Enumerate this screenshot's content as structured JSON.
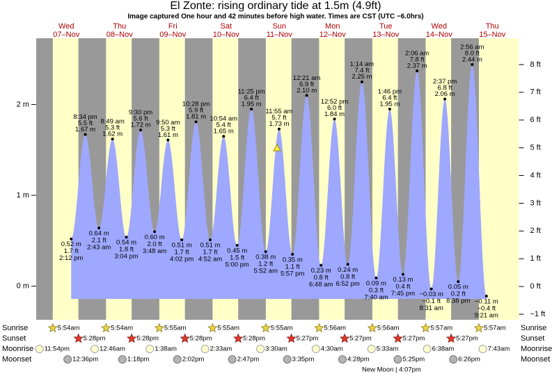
{
  "chart_data": {
    "type": "area",
    "title": "El Zonte: rising  ordinary tide at 1.5m (4.9ft)",
    "subtitle": "Image captured One hour and 42 minutes before high water. Times are CST (UTC −6.0hrs)",
    "days": [
      {
        "weekday": "Wed",
        "date": "07–Nov"
      },
      {
        "weekday": "Thu",
        "date": "08–Nov"
      },
      {
        "weekday": "Fri",
        "date": "09–Nov"
      },
      {
        "weekday": "Sat",
        "date": "10–Nov"
      },
      {
        "weekday": "Sun",
        "date": "11–Nov"
      },
      {
        "weekday": "Mon",
        "date": "12–Nov"
      },
      {
        "weekday": "Tue",
        "date": "13–Nov"
      },
      {
        "weekday": "Wed",
        "date": "14–Nov"
      },
      {
        "weekday": "Thu",
        "date": "15–Nov"
      }
    ],
    "times": [
      "2:12 pm",
      "8:34 pm",
      "2:43 am",
      "8:49 am",
      "3:04 pm",
      "9:30 pm",
      "3:48 am",
      "9:50 am",
      "4:02 pm",
      "10:28 pm",
      "4:52 am",
      "10:54 am",
      "5:00 pm",
      "11:25 pm",
      "5:52 am",
      "11:55 am",
      "5:57 pm",
      "12:21 am",
      "6:48 am",
      "12:52 pm",
      "6:52 pm",
      "1:14 am",
      "7:40 am",
      "1:46 pm",
      "7:45 pm",
      "2:06 am",
      "8:31 am",
      "2:37 pm",
      "8:38 pm",
      "2:56 am",
      "9:21 am"
    ],
    "values": [
      0.52,
      1.67,
      0.64,
      1.62,
      0.54,
      1.72,
      0.6,
      1.61,
      0.51,
      1.81,
      0.51,
      1.65,
      0.45,
      1.95,
      0.38,
      1.73,
      0.35,
      2.1,
      0.23,
      1.84,
      0.24,
      2.25,
      0.09,
      1.95,
      0.13,
      2.37,
      -0.03,
      2.06,
      0.05,
      2.44,
      -0.11
    ],
    "value_labels": [
      "0.52 m",
      "1.67 m",
      "0.64 m",
      "1.62 m",
      "0.54 m",
      "1.72 m",
      "0.60 m",
      "1.61 m",
      "0.51 m",
      "1.81 m",
      "0.51 m",
      "1.65 m",
      "0.45 m",
      "1.95 m",
      "0.38 m",
      "1.73 m",
      "0.35 m",
      "2.10 m",
      "0.23 m",
      "1.84 m",
      "0.24 m",
      "2.25 m",
      "0.09 m",
      "1.95 m",
      "0.13 m",
      "2.37 m",
      "−0.03 m",
      "2.06 m",
      "0.05 m",
      "2.44 m",
      "−0.11 m"
    ],
    "ft_labels": [
      "1.7 ft",
      "5.5 ft",
      "2.1 ft",
      "5.3 ft",
      "1.8 ft",
      "5.6 ft",
      "2.0 ft",
      "5.3 ft",
      "1.7 ft",
      "5.9 ft",
      "1.7 ft",
      "5.4 ft",
      "1.5 ft",
      "6.4 ft",
      "1.2 ft",
      "5.7 ft",
      "1.1 ft",
      "6.9 ft",
      "0.8 ft",
      "6.0 ft",
      "0.8 ft",
      "7.4 ft",
      "0.3 ft",
      "6.4 ft",
      "0.4 ft",
      "7.8 ft",
      "−0.1 ft",
      "6.8 ft",
      "0.2 ft",
      "8.0 ft",
      "−0.4 ft"
    ],
    "color": "#9ea8ff",
    "ylim": [
      -0.37,
      2.73
    ],
    "yticks": [
      {
        "value": 0,
        "label": "0 m"
      },
      {
        "value": 1,
        "label": "1 m"
      },
      {
        "value": 2,
        "label": "2 m"
      }
    ],
    "y2lim": [
      -1.2,
      8.95
    ],
    "y2ticks": [
      {
        "value": -1,
        "label": "−1 ft"
      },
      {
        "value": 0,
        "label": "0 ft"
      },
      {
        "value": 1,
        "label": "1 ft"
      },
      {
        "value": 2,
        "label": "2 ft"
      },
      {
        "value": 3,
        "label": "3 ft"
      },
      {
        "value": 4,
        "label": "4 ft"
      },
      {
        "value": 5,
        "label": "5 ft"
      },
      {
        "value": 6,
        "label": "6 ft"
      },
      {
        "value": 7,
        "label": "7 ft"
      },
      {
        "value": 8,
        "label": "8 ft"
      }
    ],
    "sun_moon": [
      {
        "label": "Sunrise",
        "times": [
          "5:54am",
          "5:54am",
          "5:55am",
          "5:55am",
          "5:55am",
          "5:56am",
          "5:56am",
          "5:57am",
          "5:57am"
        ]
      },
      {
        "label": "Sunset",
        "times": [
          "5:28pm",
          "5:28pm",
          "5:28pm",
          "5:28pm",
          "5:27pm",
          "5:27pm",
          "5:27pm",
          "5:27pm"
        ]
      },
      {
        "label": "Moonrise",
        "times": [
          "11:54pm",
          "12:46am",
          "1:38am",
          "2:33am",
          "3:30am",
          "4:30am",
          "5:33am",
          "6:38am",
          "7:43am"
        ]
      },
      {
        "label": "Moonset",
        "times": [
          "12:36pm",
          "1:18pm",
          "2:02pm",
          "2:47pm",
          "3:35pm",
          "4:28pm",
          "5:25pm",
          "6:26pm"
        ]
      }
    ],
    "moon_phase": "New Moon | 4:07pm"
  }
}
